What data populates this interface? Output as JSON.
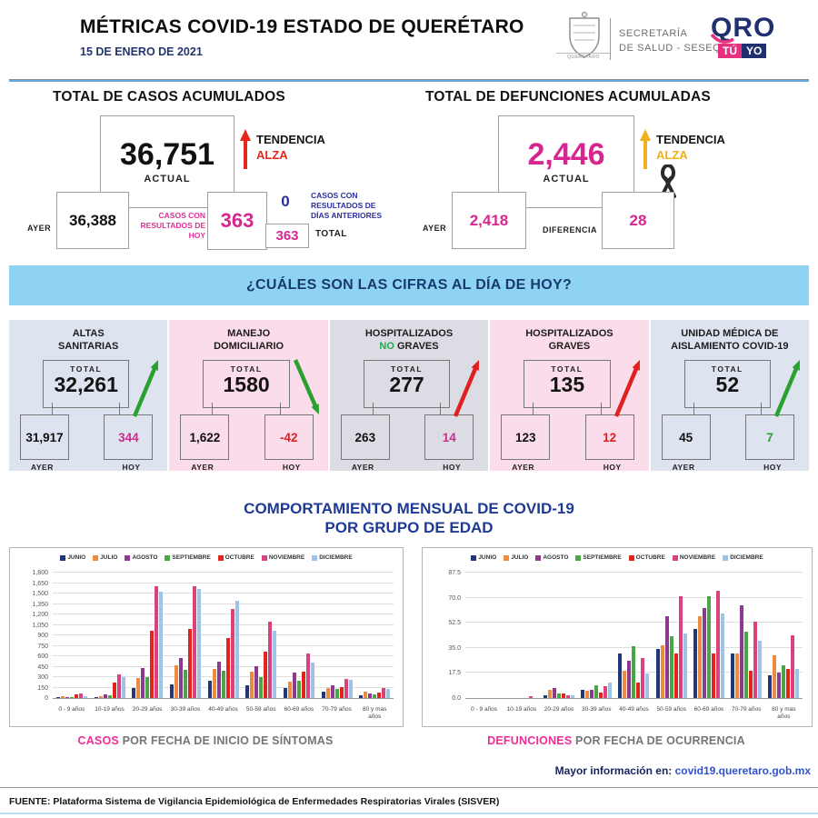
{
  "header": {
    "title": "MÉTRICAS COVID-19 ESTADO DE QUERÉTARO",
    "date": "15 DE ENERO DE 2021",
    "crest_label": "QUERÉTARO",
    "secretary_line1": "SECRETARÍA",
    "secretary_line2": "DE SALUD - SESEQ",
    "brand": {
      "qro": "QRO",
      "tu": "TÚ",
      "yo": "YO"
    }
  },
  "cases": {
    "heading": "TOTAL DE CASOS ACUMULADOS",
    "actual": "36,751",
    "actual_label": "ACTUAL",
    "trend_label": "TENDENCIA",
    "trend_value": "ALZA",
    "ayer_label": "AYER",
    "ayer": "36,388",
    "today_note": "CASOS CON RESULTADOS DE HOY",
    "today": "363",
    "previous": "0",
    "previous_note": "CASOS CON RESULTADOS DE DÍAS ANTERIORES",
    "total": "363",
    "total_label": "TOTAL"
  },
  "deaths": {
    "heading": "TOTAL DE DEFUNCIONES ACUMULADAS",
    "actual": "2,446",
    "actual_label": "ACTUAL",
    "trend_label": "TENDENCIA",
    "trend_value": "ALZA",
    "ayer_label": "AYER",
    "ayer": "2,418",
    "diff_label": "DIFERENCIA",
    "diff": "28"
  },
  "banner": "¿CUÁLES SON LAS CIFRAS AL DÍA DE HOY?",
  "cards": [
    {
      "id": "altas-sanitarias",
      "bg": "#dde4ef",
      "title": [
        [
          {
            "t": "ALTAS"
          }
        ],
        [
          {
            "t": "SANITARIAS"
          }
        ]
      ],
      "total_label": "TOTAL",
      "total": "32,261",
      "ayer_label": "AYER",
      "ayer": "31,917",
      "hoy_label": "HOY",
      "hoy": "344",
      "hoy_color": "#cc2a8d",
      "arrow_dir": "up",
      "arrow_color": "#2aa12e"
    },
    {
      "id": "manejo-domiciliario",
      "bg": "#fbdcea",
      "title": [
        [
          {
            "t": "MANEJO"
          }
        ],
        [
          {
            "t": "DOMICILIARIO"
          }
        ]
      ],
      "total_label": "TOTAL",
      "total": "1580",
      "ayer_label": "AYER",
      "ayer": "1,622",
      "hoy_label": "HOY",
      "hoy": "-42",
      "hoy_color": "#e02020",
      "arrow_dir": "down",
      "arrow_color": "#2aa12e"
    },
    {
      "id": "hospitalizados-no-graves",
      "bg": "#dcdde4",
      "title": [
        [
          {
            "t": "HOSPITALIZADOS"
          }
        ],
        [
          {
            "t": "NO",
            "c": "#1fa84f"
          },
          {
            "t": " GRAVES"
          }
        ]
      ],
      "total_label": "TOTAL",
      "total": "277",
      "ayer_label": "AYER",
      "ayer": "263",
      "hoy_label": "HOY",
      "hoy": "14",
      "hoy_color": "#cc2a8d",
      "arrow_dir": "up",
      "arrow_color": "#e02020"
    },
    {
      "id": "hospitalizados-graves",
      "bg": "#fbdcea",
      "title": [
        [
          {
            "t": "HOSPITALIZADOS"
          }
        ],
        [
          {
            "t": "GRAVES"
          }
        ]
      ],
      "total_label": "TOTAL",
      "total": "135",
      "ayer_label": "AYER",
      "ayer": "123",
      "hoy_label": "HOY",
      "hoy": "12",
      "hoy_color": "#e02020",
      "arrow_dir": "up",
      "arrow_color": "#e02020"
    },
    {
      "id": "unidad-medica-aislamiento",
      "bg": "#dde4ef",
      "title": [
        [
          {
            "t": "UNIDAD MÉDICA DE"
          }
        ],
        [
          {
            "t": "AISLAMIENTO COVID-19"
          }
        ]
      ],
      "total_label": "TOTAL",
      "total": "52",
      "ayer_label": "AYER",
      "ayer": "45",
      "hoy_label": "HOY",
      "hoy": "7",
      "hoy_color": "#2aa12e",
      "arrow_dir": "up",
      "arrow_color": "#2aa12e"
    }
  ],
  "section_title_line1": "COMPORTAMIENTO MENSUAL DE COVID-19",
  "section_title_line2": "POR GRUPO DE EDAD",
  "chart_data": [
    {
      "type": "bar",
      "title": "CASOS POR FECHA DE INICIO DE SÍNTOMAS",
      "ylim": [
        0,
        1800
      ],
      "ystep": 150,
      "grid": true,
      "legend_position": "top",
      "categories": [
        "0 - 9 años",
        "10-19 años",
        "20-29 años",
        "30-39 años",
        "40-49 años",
        "50-59 años",
        "60-69 años",
        "70-79 años",
        "80 y más años"
      ],
      "series": [
        {
          "name": "JUNIO",
          "color": "#203878",
          "values": [
            10,
            10,
            145,
            195,
            245,
            180,
            145,
            90,
            40
          ]
        },
        {
          "name": "JULIO",
          "color": "#ed8b3e",
          "values": [
            20,
            30,
            285,
            475,
            420,
            375,
            240,
            145,
            90
          ]
        },
        {
          "name": "AGOSTO",
          "color": "#8b3a8f",
          "values": [
            15,
            55,
            435,
            575,
            520,
            455,
            370,
            185,
            70
          ]
        },
        {
          "name": "SEPTIEMBRE",
          "color": "#4aa546",
          "values": [
            10,
            40,
            305,
            410,
            390,
            305,
            250,
            125,
            55
          ]
        },
        {
          "name": "OCTUBRE",
          "color": "#e3241d",
          "values": [
            50,
            220,
            970,
            990,
            860,
            670,
            380,
            155,
            80
          ]
        },
        {
          "name": "NOVIEMBRE",
          "color": "#d9417f",
          "values": [
            60,
            345,
            1610,
            1600,
            1280,
            1100,
            645,
            270,
            140
          ]
        },
        {
          "name": "DICIEMBRE",
          "color": "#9dc3e6",
          "values": [
            25,
            305,
            1520,
            1565,
            1395,
            965,
            505,
            260,
            125
          ]
        }
      ]
    },
    {
      "type": "bar",
      "title": "DEFUNCIONES POR FECHA DE OCURRENCIA",
      "ylim": [
        0,
        87.5
      ],
      "ystep": 17.5,
      "y_decimals": 1,
      "grid": true,
      "legend_position": "top",
      "categories": [
        "0 - 9 años",
        "10-19 años",
        "20-29 años",
        "30-39 años",
        "40-49 años",
        "50-59 años",
        "60-69 años",
        "70-79 años",
        "80 y más años"
      ],
      "series": [
        {
          "name": "JUNIO",
          "color": "#203878",
          "values": [
            0,
            0,
            2,
            6,
            31,
            34,
            48,
            31,
            16
          ]
        },
        {
          "name": "JULIO",
          "color": "#ed8b3e",
          "values": [
            0,
            0,
            6,
            5,
            19,
            37,
            57,
            31,
            30
          ]
        },
        {
          "name": "AGOSTO",
          "color": "#8b3a8f",
          "values": [
            0,
            0,
            7,
            6,
            26,
            57,
            63,
            65,
            18
          ]
        },
        {
          "name": "SEPTIEMBRE",
          "color": "#4aa546",
          "values": [
            0,
            0,
            3,
            9,
            36,
            43,
            71,
            46,
            23
          ]
        },
        {
          "name": "OCTUBRE",
          "color": "#e3241d",
          "values": [
            0,
            0,
            3,
            4,
            11,
            31,
            31,
            19,
            20
          ]
        },
        {
          "name": "NOVIEMBRE",
          "color": "#d9417f",
          "values": [
            0,
            1,
            2,
            8,
            28,
            71,
            75,
            53,
            44
          ]
        },
        {
          "name": "DICIEMBRE",
          "color": "#9dc3e6",
          "values": [
            0,
            0,
            2,
            11,
            17,
            45,
            59,
            40,
            20
          ]
        }
      ]
    }
  ],
  "captions": {
    "left_accent": "CASOS",
    "left_rest": " POR FECHA DE INICIO DE SÍNTOMAS",
    "right_accent": "DEFUNCIONES",
    "right_rest": " POR FECHA DE OCURRENCIA"
  },
  "more_info": {
    "label": "Mayor información en: ",
    "link": "covid19.queretaro.gob.mx"
  },
  "footer": "FUENTE: Plataforma Sistema  de Vigilancia Epidemiológica de Enfermedades Respiratorias Virales (SISVER)",
  "colors": {
    "pink": "#d6268f",
    "magenta": "#cc2a8d",
    "red": "#e8271c",
    "green": "#2aa12e",
    "amber": "#f2b01e",
    "navy": "#1f3468",
    "link_blue": "#2f53cf",
    "banner_bg": "#8fd3f3",
    "banner_text": "#173a70",
    "card_bluegrey_bg": "#dde4ef",
    "card_pink_bg": "#fbdcea",
    "card_grey_bg": "#dcdde4"
  }
}
